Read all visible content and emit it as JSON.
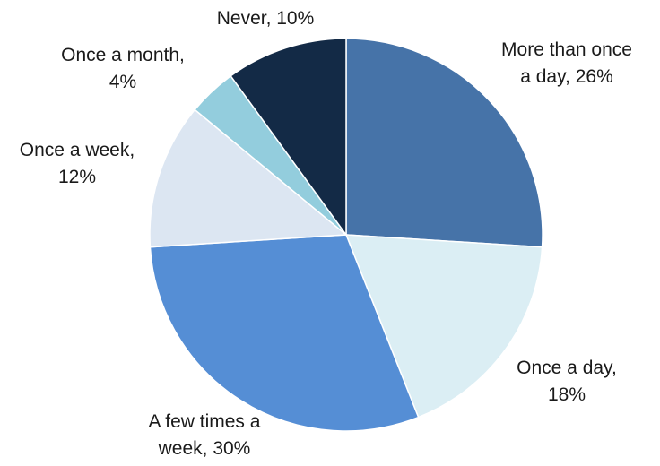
{
  "chart_data": {
    "type": "pie",
    "start_angle_deg": 0,
    "direction": "clockwise",
    "legend": "none",
    "slices": [
      {
        "label_lines": [
          "More than once",
          "a day, 26%"
        ],
        "value": 26,
        "color": "#4673a8"
      },
      {
        "label_lines": [
          "Once a day,",
          "18%"
        ],
        "value": 18,
        "color": "#dbeef4"
      },
      {
        "label_lines": [
          "A few times a",
          "week, 30%"
        ],
        "value": 30,
        "color": "#558ed5"
      },
      {
        "label_lines": [
          "Once a week,",
          "12%"
        ],
        "value": 12,
        "color": "#dce6f2"
      },
      {
        "label_lines": [
          "Once a month,",
          "4%"
        ],
        "value": 4,
        "color": "#93cddd"
      },
      {
        "label_lines": [
          "Never, 10%"
        ],
        "value": 10,
        "color": "#132a46"
      }
    ]
  }
}
